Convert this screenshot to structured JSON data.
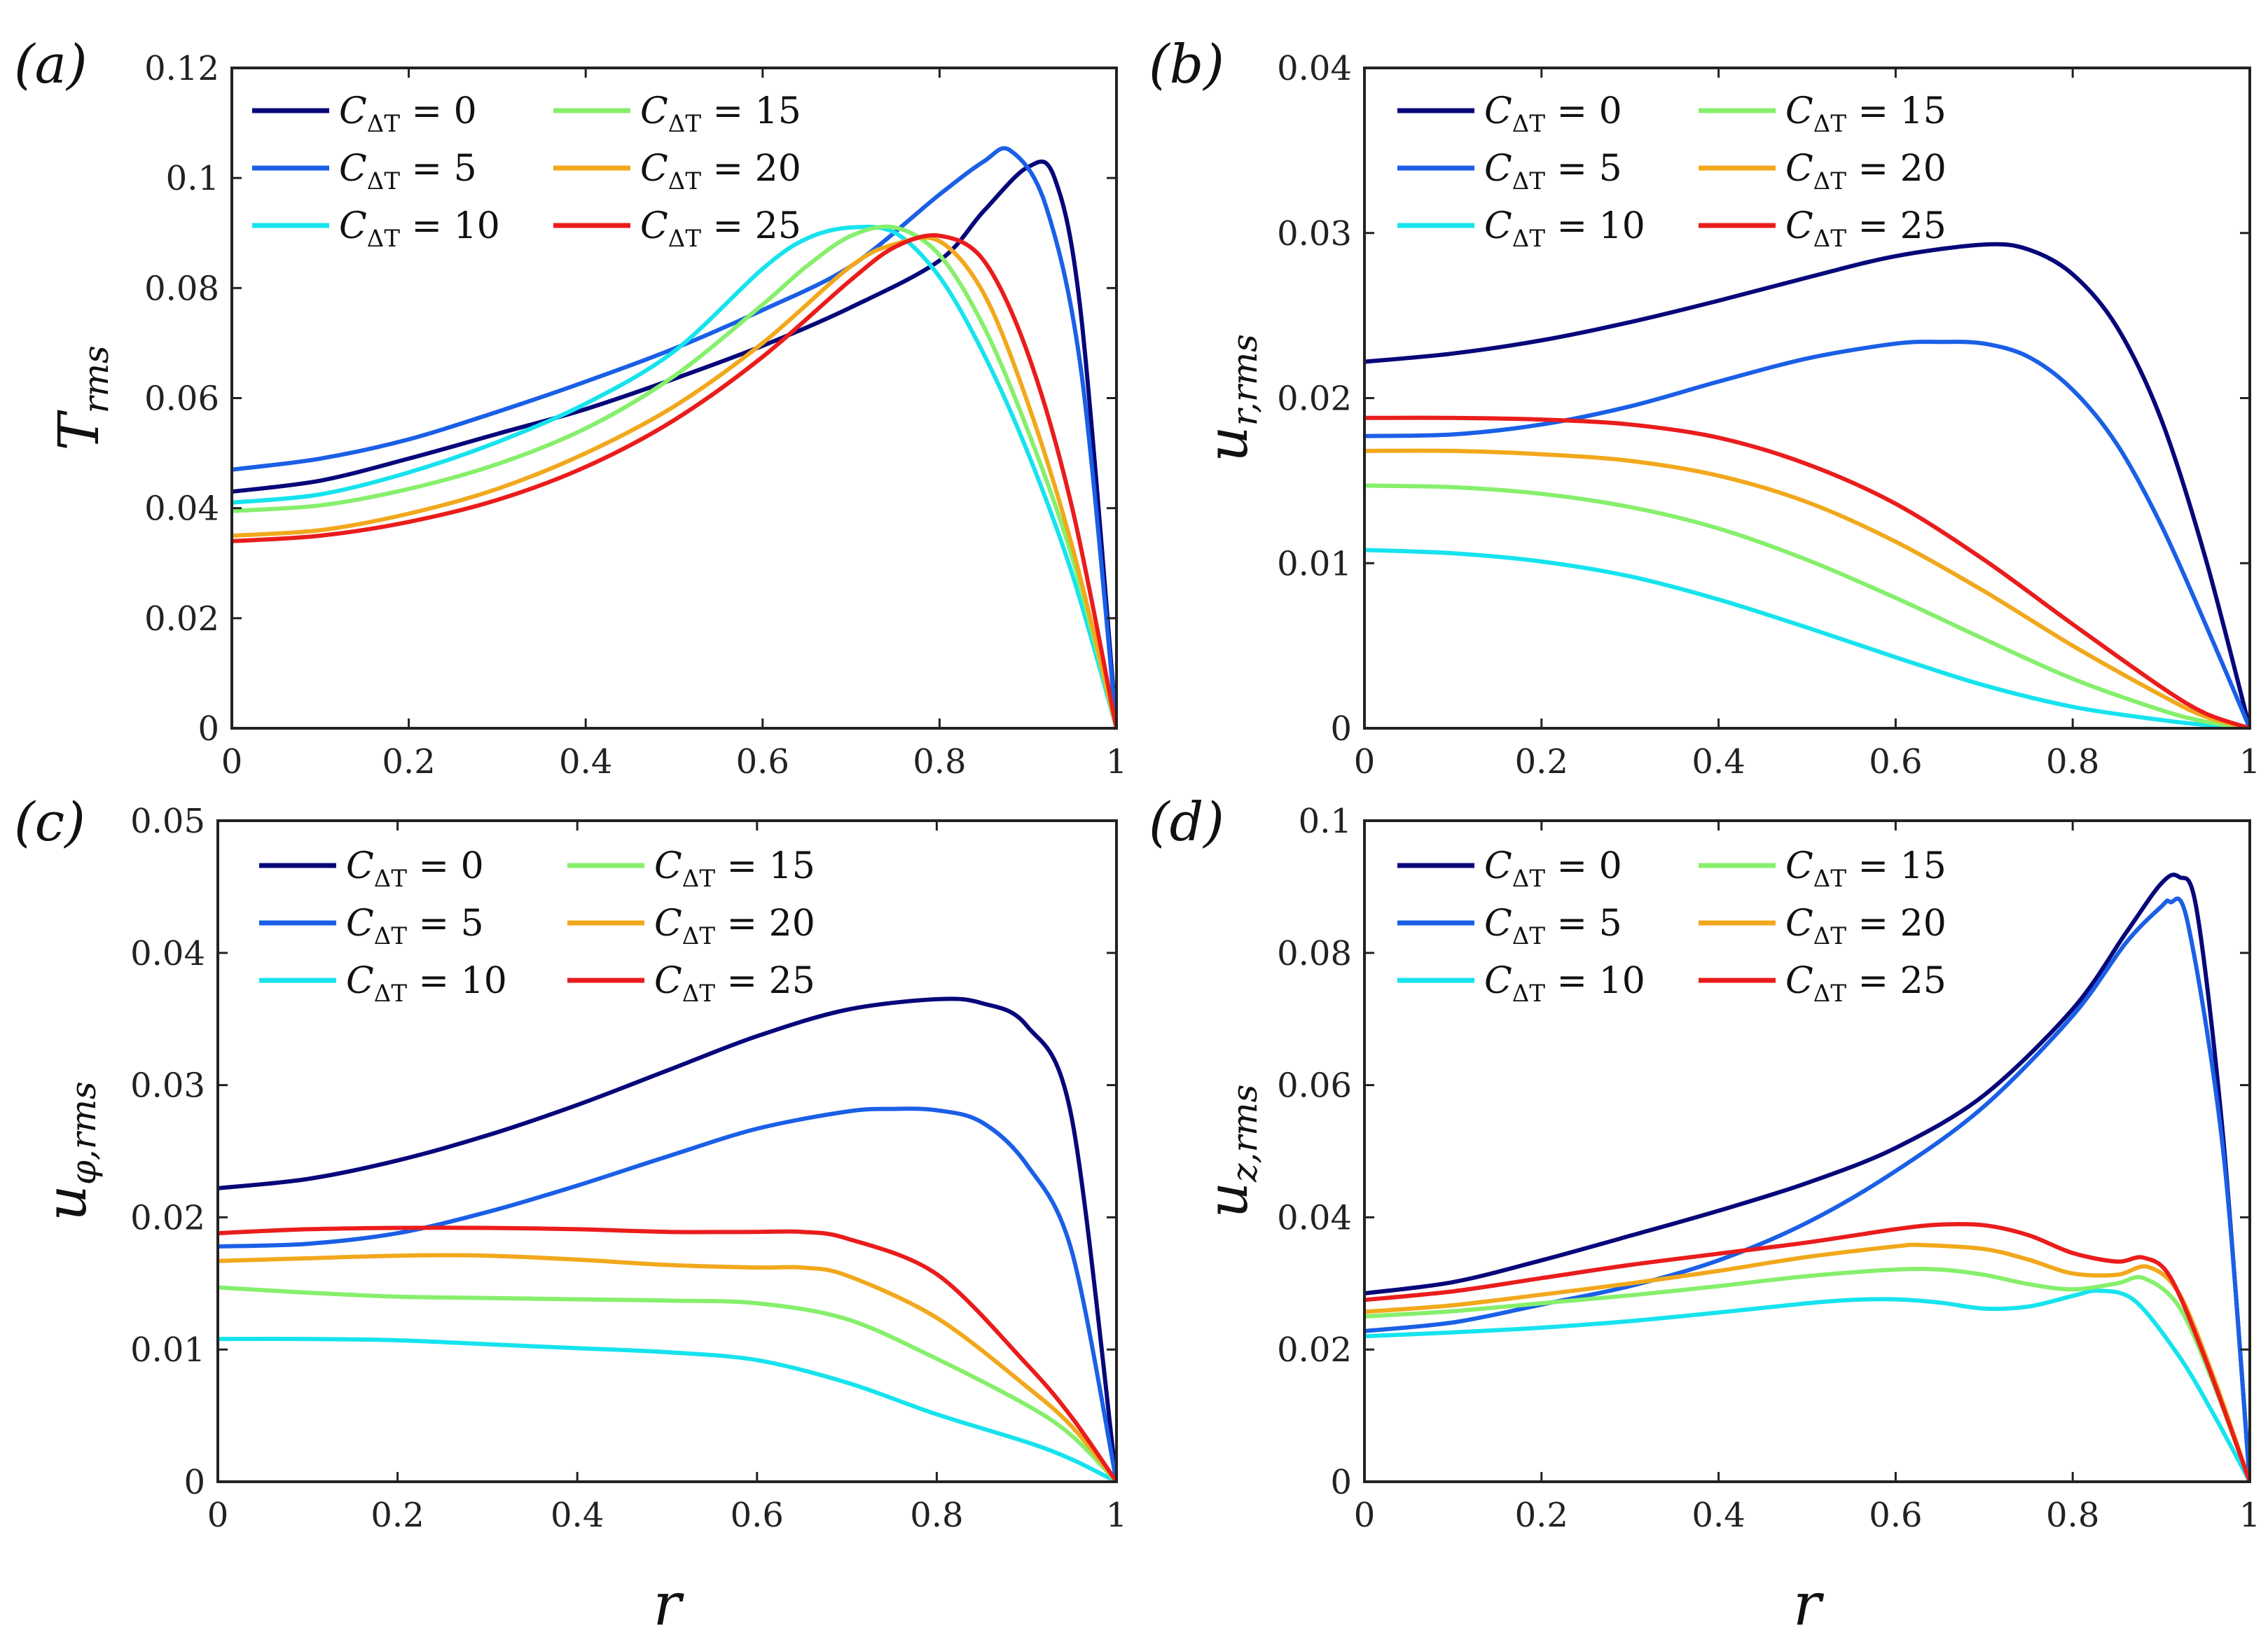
{
  "colors": {
    "C0": "#07077a",
    "C5": "#1a5fe6",
    "C10": "#16e3ee",
    "C15": "#86ef6c",
    "C20": "#f2a81c",
    "C25": "#ea1c1c"
  },
  "legend_values": [
    "0",
    "5",
    "10",
    "15",
    "20",
    "25"
  ],
  "x_axis_label": "r",
  "chart_data": [
    {
      "panel": "(a)",
      "type": "line",
      "ylabel": "T",
      "ylabel_sub": "rms",
      "xlim": [
        0,
        1
      ],
      "ylim": [
        0,
        0.12
      ],
      "xticks": [
        "0",
        "0.2",
        "0.4",
        "0.6",
        "0.8",
        "1"
      ],
      "yticks": [
        "0",
        "0.02",
        "0.04",
        "0.06",
        "0.08",
        "0.1",
        "0.12"
      ],
      "legend": "top-left",
      "series": [
        {
          "name": "C_ΔT = 0",
          "color": "#07077a",
          "x": [
            0,
            0.1,
            0.2,
            0.3,
            0.4,
            0.5,
            0.6,
            0.7,
            0.8,
            0.85,
            0.9,
            0.93,
            0.96,
            1.0
          ],
          "y": [
            0.043,
            0.045,
            0.049,
            0.0535,
            0.058,
            0.0635,
            0.0695,
            0.0765,
            0.085,
            0.094,
            0.102,
            0.1,
            0.075,
            0
          ]
        },
        {
          "name": "C_ΔT = 5",
          "color": "#1a5fe6",
          "x": [
            0,
            0.1,
            0.2,
            0.3,
            0.4,
            0.5,
            0.6,
            0.7,
            0.8,
            0.85,
            0.88,
            0.92,
            0.96,
            1.0
          ],
          "y": [
            0.047,
            0.049,
            0.0525,
            0.0575,
            0.063,
            0.069,
            0.076,
            0.084,
            0.097,
            0.103,
            0.105,
            0.095,
            0.065,
            0
          ]
        },
        {
          "name": "C_ΔT = 10",
          "color": "#16e3ee",
          "x": [
            0,
            0.1,
            0.2,
            0.3,
            0.4,
            0.5,
            0.6,
            0.65,
            0.7,
            0.75,
            0.8,
            0.85,
            0.9,
            0.95,
            1.0
          ],
          "y": [
            0.041,
            0.0425,
            0.0465,
            0.052,
            0.059,
            0.0685,
            0.0835,
            0.089,
            0.091,
            0.09,
            0.082,
            0.068,
            0.05,
            0.028,
            0
          ]
        },
        {
          "name": "C_ΔT = 15",
          "color": "#86ef6c",
          "x": [
            0,
            0.1,
            0.2,
            0.3,
            0.4,
            0.5,
            0.6,
            0.65,
            0.7,
            0.75,
            0.8,
            0.85,
            0.9,
            0.95,
            1.0
          ],
          "y": [
            0.0395,
            0.0405,
            0.0435,
            0.048,
            0.0545,
            0.064,
            0.077,
            0.084,
            0.0895,
            0.091,
            0.086,
            0.073,
            0.054,
            0.031,
            0
          ]
        },
        {
          "name": "C_ΔT = 20",
          "color": "#f2a81c",
          "x": [
            0,
            0.1,
            0.2,
            0.3,
            0.4,
            0.5,
            0.6,
            0.7,
            0.75,
            0.8,
            0.85,
            0.9,
            0.95,
            1.0
          ],
          "y": [
            0.035,
            0.036,
            0.039,
            0.0435,
            0.05,
            0.0585,
            0.07,
            0.084,
            0.088,
            0.0885,
            0.079,
            0.059,
            0.033,
            0
          ]
        },
        {
          "name": "C_ΔT = 25",
          "color": "#ea1c1c",
          "x": [
            0,
            0.1,
            0.2,
            0.3,
            0.4,
            0.5,
            0.6,
            0.7,
            0.75,
            0.8,
            0.85,
            0.9,
            0.95,
            1.0
          ],
          "y": [
            0.034,
            0.035,
            0.0375,
            0.0415,
            0.0475,
            0.056,
            0.0675,
            0.0815,
            0.0875,
            0.0895,
            0.085,
            0.068,
            0.04,
            0
          ]
        }
      ]
    },
    {
      "panel": "(b)",
      "type": "line",
      "ylabel": "u",
      "ylabel_sub": "r,rms",
      "xlim": [
        0,
        1
      ],
      "ylim": [
        0,
        0.04
      ],
      "xticks": [
        "0",
        "0.2",
        "0.4",
        "0.6",
        "0.8",
        "1"
      ],
      "yticks": [
        "0",
        "0.01",
        "0.02",
        "0.03",
        "0.04"
      ],
      "legend": "top-left",
      "series": [
        {
          "name": "C_ΔT = 0",
          "color": "#07077a",
          "x": [
            0,
            0.1,
            0.2,
            0.3,
            0.4,
            0.5,
            0.6,
            0.7,
            0.75,
            0.8,
            0.85,
            0.9,
            0.95,
            1.0
          ],
          "y": [
            0.0222,
            0.0227,
            0.0235,
            0.0246,
            0.0259,
            0.0273,
            0.0286,
            0.0293,
            0.029,
            0.0275,
            0.0243,
            0.0187,
            0.0103,
            0
          ]
        },
        {
          "name": "C_ΔT = 5",
          "color": "#1a5fe6",
          "x": [
            0,
            0.1,
            0.2,
            0.3,
            0.4,
            0.5,
            0.6,
            0.65,
            0.7,
            0.75,
            0.8,
            0.85,
            0.9,
            0.95,
            1.0
          ],
          "y": [
            0.0177,
            0.0178,
            0.0184,
            0.0195,
            0.021,
            0.0224,
            0.0233,
            0.0234,
            0.0233,
            0.0225,
            0.0205,
            0.0172,
            0.0123,
            0.0063,
            0
          ]
        },
        {
          "name": "C_ΔT = 10",
          "color": "#16e3ee",
          "x": [
            0,
            0.1,
            0.2,
            0.3,
            0.4,
            0.5,
            0.6,
            0.7,
            0.8,
            0.9,
            0.95,
            1.0
          ],
          "y": [
            0.0108,
            0.0106,
            0.0101,
            0.0092,
            0.0078,
            0.0061,
            0.0043,
            0.0026,
            0.0013,
            0.0005,
            0.0002,
            0
          ]
        },
        {
          "name": "C_ΔT = 15",
          "color": "#86ef6c",
          "x": [
            0,
            0.1,
            0.2,
            0.3,
            0.4,
            0.5,
            0.6,
            0.7,
            0.8,
            0.9,
            0.95,
            1.0
          ],
          "y": [
            0.0147,
            0.0146,
            0.0142,
            0.0134,
            0.0121,
            0.0102,
            0.0079,
            0.0054,
            0.003,
            0.0011,
            0.0004,
            0
          ]
        },
        {
          "name": "C_ΔT = 20",
          "color": "#f2a81c",
          "x": [
            0,
            0.1,
            0.2,
            0.3,
            0.4,
            0.5,
            0.6,
            0.7,
            0.8,
            0.9,
            0.95,
            1.0
          ],
          "y": [
            0.0168,
            0.0168,
            0.0166,
            0.0162,
            0.0153,
            0.0137,
            0.0113,
            0.0083,
            0.005,
            0.002,
            0.0007,
            0
          ]
        },
        {
          "name": "C_ΔT = 25",
          "color": "#ea1c1c",
          "x": [
            0,
            0.1,
            0.2,
            0.3,
            0.4,
            0.5,
            0.6,
            0.7,
            0.8,
            0.9,
            0.95,
            1.0
          ],
          "y": [
            0.0188,
            0.0188,
            0.0187,
            0.0184,
            0.0176,
            0.016,
            0.0136,
            0.0102,
            0.0063,
            0.0025,
            0.0009,
            0
          ]
        }
      ]
    },
    {
      "panel": "(c)",
      "type": "line",
      "ylabel": "u",
      "ylabel_sub": "φ,rms",
      "xlim": [
        0,
        1
      ],
      "ylim": [
        0,
        0.05
      ],
      "xticks": [
        "0",
        "0.2",
        "0.4",
        "0.6",
        "0.8",
        "1"
      ],
      "yticks": [
        "0",
        "0.01",
        "0.02",
        "0.03",
        "0.04",
        "0.05"
      ],
      "legend": "top-left",
      "series": [
        {
          "name": "C_ΔT = 0",
          "color": "#07077a",
          "x": [
            0,
            0.1,
            0.2,
            0.3,
            0.4,
            0.5,
            0.6,
            0.7,
            0.8,
            0.85,
            0.9,
            0.95,
            1.0
          ],
          "y": [
            0.0222,
            0.0229,
            0.0243,
            0.0262,
            0.0285,
            0.0311,
            0.0337,
            0.0357,
            0.0365,
            0.0362,
            0.0345,
            0.0276,
            0
          ]
        },
        {
          "name": "C_ΔT = 5",
          "color": "#1a5fe6",
          "x": [
            0,
            0.1,
            0.2,
            0.3,
            0.4,
            0.5,
            0.6,
            0.7,
            0.75,
            0.8,
            0.85,
            0.9,
            0.95,
            1.0
          ],
          "y": [
            0.0178,
            0.018,
            0.0188,
            0.0204,
            0.0224,
            0.0246,
            0.0267,
            0.028,
            0.0282,
            0.0281,
            0.0272,
            0.024,
            0.0175,
            0
          ]
        },
        {
          "name": "C_ΔT = 10",
          "color": "#16e3ee",
          "x": [
            0,
            0.1,
            0.2,
            0.3,
            0.4,
            0.5,
            0.6,
            0.7,
            0.8,
            0.9,
            0.95,
            1.0
          ],
          "y": [
            0.0108,
            0.0108,
            0.0107,
            0.0104,
            0.0101,
            0.0098,
            0.0092,
            0.0075,
            0.0051,
            0.003,
            0.0017,
            0
          ]
        },
        {
          "name": "C_ΔT = 15",
          "color": "#86ef6c",
          "x": [
            0,
            0.1,
            0.2,
            0.3,
            0.4,
            0.5,
            0.6,
            0.7,
            0.8,
            0.9,
            0.95,
            1.0
          ],
          "y": [
            0.0147,
            0.0143,
            0.014,
            0.0139,
            0.0138,
            0.0137,
            0.0135,
            0.0123,
            0.0093,
            0.0058,
            0.0035,
            0
          ]
        },
        {
          "name": "C_ΔT = 20",
          "color": "#f2a81c",
          "x": [
            0,
            0.1,
            0.2,
            0.3,
            0.4,
            0.5,
            0.6,
            0.65,
            0.7,
            0.8,
            0.9,
            0.95,
            1.0
          ],
          "y": [
            0.0167,
            0.0169,
            0.0171,
            0.0171,
            0.0168,
            0.0164,
            0.0162,
            0.0162,
            0.0156,
            0.0124,
            0.0072,
            0.0042,
            0
          ]
        },
        {
          "name": "C_ΔT = 25",
          "color": "#ea1c1c",
          "x": [
            0,
            0.1,
            0.2,
            0.3,
            0.4,
            0.5,
            0.6,
            0.65,
            0.7,
            0.8,
            0.9,
            0.95,
            1.0
          ],
          "y": [
            0.0188,
            0.0191,
            0.0192,
            0.0192,
            0.0191,
            0.0189,
            0.0189,
            0.0189,
            0.0184,
            0.0157,
            0.0089,
            0.0049,
            0
          ]
        }
      ]
    },
    {
      "panel": "(d)",
      "type": "line",
      "ylabel": "u",
      "ylabel_sub": "z,rms",
      "xlim": [
        0,
        1
      ],
      "ylim": [
        0,
        0.1
      ],
      "xticks": [
        "0",
        "0.2",
        "0.4",
        "0.6",
        "0.8",
        "1"
      ],
      "yticks": [
        "0",
        "0.02",
        "0.04",
        "0.06",
        "0.08",
        "0.1"
      ],
      "legend": "top-left",
      "series": [
        {
          "name": "C_ΔT = 0",
          "color": "#07077a",
          "x": [
            0,
            0.1,
            0.2,
            0.3,
            0.4,
            0.5,
            0.6,
            0.7,
            0.8,
            0.86,
            0.9,
            0.92,
            0.94,
            0.97,
            1.0
          ],
          "y": [
            0.0285,
            0.0302,
            0.0335,
            0.0372,
            0.041,
            0.0452,
            0.0505,
            0.0585,
            0.0715,
            0.083,
            0.0905,
            0.0915,
            0.0865,
            0.052,
            0
          ]
        },
        {
          "name": "C_ΔT = 5",
          "color": "#1a5fe6",
          "x": [
            0,
            0.1,
            0.2,
            0.3,
            0.4,
            0.5,
            0.6,
            0.7,
            0.8,
            0.86,
            0.9,
            0.91,
            0.93,
            0.97,
            1.0
          ],
          "y": [
            0.0228,
            0.0241,
            0.0268,
            0.0296,
            0.0335,
            0.0392,
            0.047,
            0.0568,
            0.0705,
            0.0815,
            0.087,
            0.0877,
            0.0845,
            0.05,
            0
          ]
        },
        {
          "name": "C_ΔT = 10",
          "color": "#16e3ee",
          "x": [
            0,
            0.1,
            0.2,
            0.3,
            0.4,
            0.5,
            0.55,
            0.6,
            0.65,
            0.7,
            0.75,
            0.8,
            0.83,
            0.87,
            0.92,
            0.96,
            1.0
          ],
          "y": [
            0.022,
            0.0226,
            0.0233,
            0.0243,
            0.0256,
            0.027,
            0.0275,
            0.0276,
            0.0271,
            0.0262,
            0.0265,
            0.0281,
            0.0289,
            0.0274,
            0.019,
            0.01,
            0
          ]
        },
        {
          "name": "C_ΔT = 15",
          "color": "#86ef6c",
          "x": [
            0,
            0.1,
            0.2,
            0.3,
            0.4,
            0.5,
            0.6,
            0.65,
            0.7,
            0.75,
            0.8,
            0.85,
            0.88,
            0.92,
            0.96,
            1.0
          ],
          "y": [
            0.025,
            0.0258,
            0.027,
            0.0282,
            0.0296,
            0.0311,
            0.0321,
            0.0321,
            0.0313,
            0.0299,
            0.0291,
            0.03,
            0.0308,
            0.0265,
            0.0145,
            0
          ]
        },
        {
          "name": "C_ΔT = 20",
          "color": "#f2a81c",
          "x": [
            0,
            0.1,
            0.2,
            0.3,
            0.4,
            0.5,
            0.6,
            0.63,
            0.7,
            0.75,
            0.8,
            0.85,
            0.885,
            0.92,
            0.96,
            1.0
          ],
          "y": [
            0.0257,
            0.0267,
            0.0283,
            0.03,
            0.0319,
            0.034,
            0.0356,
            0.0358,
            0.0352,
            0.0336,
            0.0315,
            0.0313,
            0.0325,
            0.0285,
            0.0155,
            0
          ]
        },
        {
          "name": "C_ΔT = 25",
          "color": "#ea1c1c",
          "x": [
            0,
            0.1,
            0.2,
            0.3,
            0.4,
            0.5,
            0.6,
            0.65,
            0.7,
            0.75,
            0.8,
            0.85,
            0.88,
            0.91,
            0.95,
            1.0
          ],
          "y": [
            0.0275,
            0.0288,
            0.0308,
            0.0328,
            0.0345,
            0.0362,
            0.0382,
            0.0389,
            0.0388,
            0.0373,
            0.0346,
            0.0333,
            0.0339,
            0.031,
            0.0185,
            0
          ]
        }
      ]
    }
  ]
}
